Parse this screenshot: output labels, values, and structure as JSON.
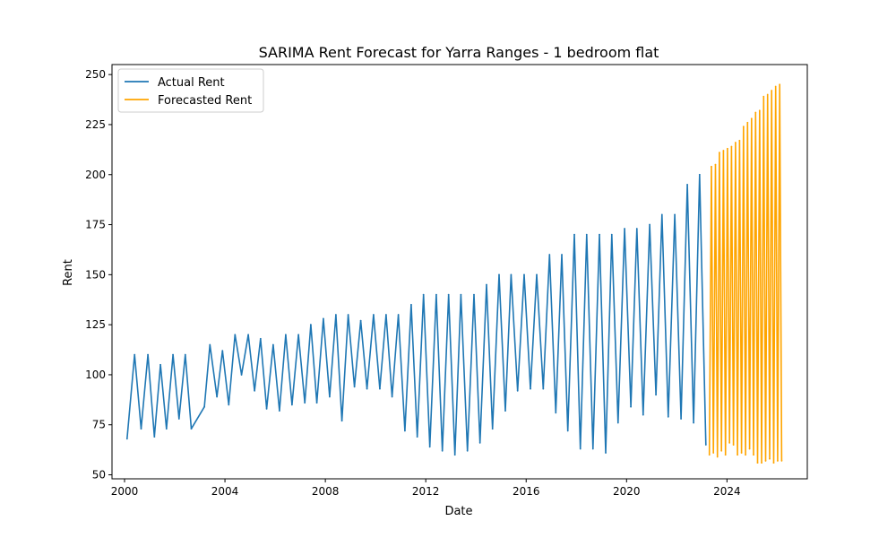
{
  "chart_data": {
    "type": "line",
    "title": "SARIMA Rent Forecast for Yarra Ranges - 1 bedroom flat",
    "xlabel": "Date",
    "ylabel": "Rent",
    "xlim": [
      1999.5,
      2027.2
    ],
    "ylim": [
      48,
      255
    ],
    "x_ticks": [
      2000,
      2004,
      2008,
      2012,
      2016,
      2020,
      2024
    ],
    "x_tick_labels": [
      "2000",
      "2004",
      "2008",
      "2012",
      "2016",
      "2020",
      "2024"
    ],
    "y_ticks": [
      50,
      75,
      100,
      125,
      150,
      175,
      200,
      225,
      250
    ],
    "y_tick_labels": [
      "50",
      "75",
      "100",
      "125",
      "150",
      "175",
      "200",
      "225",
      "250"
    ],
    "grid": false,
    "legend_position": "upper-left",
    "series": [
      {
        "name": "Actual Rent",
        "color": "#1f77b4",
        "x": [
          2000.1,
          2000.4,
          2000.66,
          2000.93,
          2001.19,
          2001.43,
          2001.67,
          2001.93,
          2002.17,
          2002.42,
          2002.66,
          2003.18,
          2003.4,
          2003.68,
          2003.9,
          2004.15,
          2004.4,
          2004.66,
          2004.93,
          2005.18,
          2005.42,
          2005.66,
          2005.92,
          2006.17,
          2006.42,
          2006.67,
          2006.93,
          2007.18,
          2007.42,
          2007.66,
          2007.92,
          2008.17,
          2008.42,
          2008.66,
          2008.91,
          2009.16,
          2009.41,
          2009.66,
          2009.92,
          2010.17,
          2010.42,
          2010.66,
          2010.91,
          2011.17,
          2011.42,
          2011.66,
          2011.91,
          2012.16,
          2012.42,
          2012.66,
          2012.91,
          2013.16,
          2013.4,
          2013.66,
          2013.92,
          2014.16,
          2014.42,
          2014.66,
          2014.92,
          2015.17,
          2015.4,
          2015.66,
          2015.92,
          2016.17,
          2016.42,
          2016.68,
          2016.93,
          2017.18,
          2017.42,
          2017.66,
          2017.92,
          2018.16,
          2018.41,
          2018.66,
          2018.92,
          2019.17,
          2019.41,
          2019.66,
          2019.92,
          2020.17,
          2020.41,
          2020.66,
          2020.92,
          2021.17,
          2021.41,
          2021.66,
          2021.92,
          2022.17,
          2022.42,
          2022.67,
          2022.91,
          2023.16
        ],
        "y": [
          68,
          110,
          73,
          110,
          69,
          105,
          73,
          110,
          78,
          110,
          73,
          84,
          115,
          89,
          112,
          85,
          120,
          100,
          120,
          92,
          118,
          83,
          115,
          82,
          120,
          85,
          120,
          86,
          125,
          86,
          128,
          89,
          130,
          77,
          130,
          94,
          127,
          93,
          130,
          93,
          130,
          89,
          130,
          72,
          135,
          69,
          140,
          64,
          140,
          62,
          140,
          60,
          140,
          62,
          140,
          66,
          145,
          73,
          150,
          82,
          150,
          92,
          150,
          93,
          150,
          93,
          160,
          81,
          160,
          72,
          170,
          63,
          170,
          63,
          170,
          61,
          170,
          76,
          173,
          84,
          173,
          80,
          175,
          90,
          180,
          79,
          180,
          78,
          195,
          76,
          200,
          65
        ]
      },
      {
        "name": "Forecasted Rent",
        "color": "#ffa500",
        "x": [
          2023.3,
          2023.38,
          2023.46,
          2023.54,
          2023.62,
          2023.7,
          2023.78,
          2023.86,
          2023.94,
          2024.02,
          2024.1,
          2024.18,
          2024.26,
          2024.34,
          2024.42,
          2024.5,
          2024.58,
          2024.66,
          2024.74,
          2024.82,
          2024.9,
          2024.98,
          2025.06,
          2025.14,
          2025.22,
          2025.3,
          2025.38,
          2025.46,
          2025.54,
          2025.62,
          2025.7,
          2025.78,
          2025.86,
          2025.94,
          2026.02,
          2026.1,
          2026.18
        ],
        "y": [
          60,
          204,
          61,
          205,
          59,
          211,
          62,
          212,
          60,
          213,
          66,
          214,
          65,
          216,
          60,
          217,
          61,
          224,
          60,
          226,
          63,
          228,
          60,
          231,
          56,
          232,
          56,
          239,
          57,
          240,
          58,
          242,
          56,
          244,
          57,
          245,
          57
        ]
      }
    ]
  }
}
